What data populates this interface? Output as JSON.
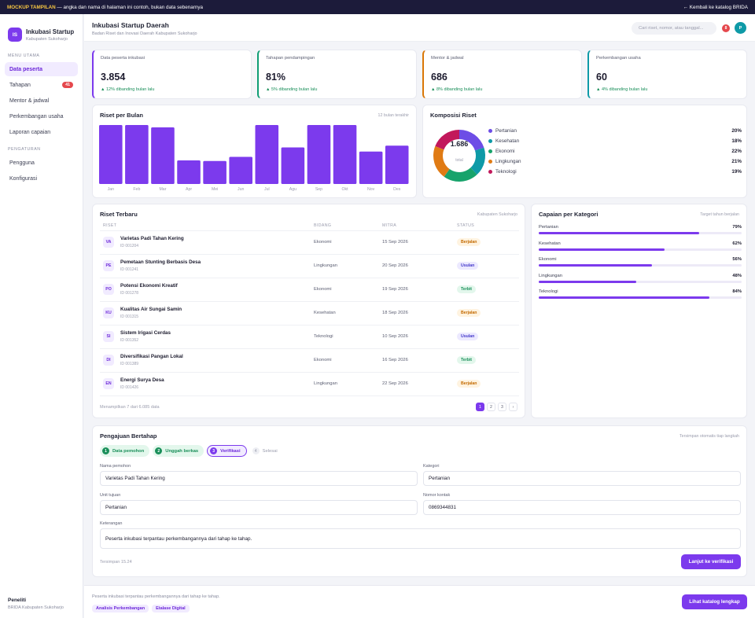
{
  "banner": {
    "tag": "MOCKUP TAMPILAN",
    "text": " — angka dan nama di halaman ini contoh, bukan data sebenarnya",
    "back": "← Kembali ke katalog BRIDA"
  },
  "brand": {
    "logo": "IS",
    "name": "Inkubasi Startup",
    "sub": "Kabupaten Sukoharjo"
  },
  "sidebar": {
    "section_main": "MENU UTAMA",
    "items": [
      {
        "label": "Data peserta",
        "active": true
      },
      {
        "label": "Tahapan",
        "badge": "41"
      },
      {
        "label": "Mentor & jadwal"
      },
      {
        "label": "Perkembangan usaha"
      },
      {
        "label": "Laporan capaian"
      }
    ],
    "section_settings": "PENGATURAN",
    "settings": [
      {
        "label": "Pengguna"
      },
      {
        "label": "Konfigurasi"
      }
    ],
    "footer": {
      "name": "Peneliti",
      "org": "BRIDA Kabupaten Sukoharjo"
    }
  },
  "header": {
    "title": "Inkubasi Startup Daerah",
    "subtitle": "Badan Riset dan Inovasi Daerah Kabupaten Sukoharjo",
    "search_placeholder": "Cari riset, nomor, atau tanggal...",
    "notif": "8",
    "avatar": "P"
  },
  "stats": [
    {
      "label": "Data peserta inkubasi",
      "value": "3.854",
      "change": "▲ 12% dibanding bulan lalu",
      "color": "#7c3aed"
    },
    {
      "label": "Tahapan pendampingan",
      "value": "81%",
      "change": "▲ 5% dibanding bulan lalu",
      "color": "#0f9d74"
    },
    {
      "label": "Mentor & jadwal",
      "value": "686",
      "change": "▲ 8% dibanding bulan lalu",
      "color": "#d97706"
    },
    {
      "label": "Perkembangan usaha",
      "value": "60",
      "change": "▲ 4% dibanding bulan lalu",
      "color": "#0e9aa7"
    }
  ],
  "chart_data": [
    {
      "type": "bar",
      "title": "Riset per Bulan",
      "note": "12 bulan terakhir",
      "categories": [
        "Jan",
        "Feb",
        "Mar",
        "Apr",
        "Mei",
        "Jun",
        "Jul",
        "Agu",
        "Sep",
        "Okt",
        "Nov",
        "Des"
      ],
      "values": [
        100,
        100,
        96,
        40,
        39,
        46,
        100,
        62,
        100,
        100,
        55,
        65
      ],
      "ylim": [
        0,
        100
      ],
      "color": "#7c3aed"
    },
    {
      "type": "pie",
      "title": "Komposisi Riset",
      "center_value": "1.686",
      "center_label": "total",
      "slices": [
        {
          "label": "Pertanian",
          "value": 20,
          "display": "20%",
          "color": "#6d4de6"
        },
        {
          "label": "Kesehatan",
          "value": 18,
          "display": "18%",
          "color": "#0e9aa7"
        },
        {
          "label": "Ekonomi",
          "value": 22,
          "display": "22%",
          "color": "#17a36b"
        },
        {
          "label": "Lingkungan",
          "value": 21,
          "display": "21%",
          "color": "#e07b14"
        },
        {
          "label": "Teknologi",
          "value": 19,
          "display": "19%",
          "color": "#c2185b"
        }
      ]
    }
  ],
  "riset": {
    "title": "Riset Terbaru",
    "note": "Kabupaten Sukoharjo",
    "columns": [
      "RISET",
      "BIDANG",
      "MITRA",
      "STATUS"
    ],
    "rows": [
      {
        "initials": "VA",
        "name": "Varietas Padi Tahan Kering",
        "id": "ID 001204",
        "bidang": "Ekonomi",
        "mitra": "15 Sep 2026",
        "status": "Berjalan",
        "kind": "berjalan"
      },
      {
        "initials": "PE",
        "name": "Pemetaan Stunting Berbasis Desa",
        "id": "ID 001241",
        "bidang": "Lingkungan",
        "mitra": "20 Sep 2026",
        "status": "Usulan",
        "kind": "usulan"
      },
      {
        "initials": "PO",
        "name": "Potensi Ekonomi Kreatif",
        "id": "ID 001278",
        "bidang": "Ekonomi",
        "mitra": "19 Sep 2026",
        "status": "Terbit",
        "kind": "terbit"
      },
      {
        "initials": "KU",
        "name": "Kualitas Air Sungai Samin",
        "id": "ID 001315",
        "bidang": "Kesehatan",
        "mitra": "18 Sep 2026",
        "status": "Berjalan",
        "kind": "berjalan"
      },
      {
        "initials": "SI",
        "name": "Sistem Irigasi Cerdas",
        "id": "ID 001352",
        "bidang": "Teknologi",
        "mitra": "10 Sep 2026",
        "status": "Usulan",
        "kind": "usulan"
      },
      {
        "initials": "DI",
        "name": "Diversifikasi Pangan Lokal",
        "id": "ID 001389",
        "bidang": "Ekonomi",
        "mitra": "16 Sep 2026",
        "status": "Terbit",
        "kind": "terbit"
      },
      {
        "initials": "EN",
        "name": "Energi Surya Desa",
        "id": "ID 001426",
        "bidang": "Lingkungan",
        "mitra": "22 Sep 2026",
        "status": "Berjalan",
        "kind": "berjalan"
      }
    ],
    "footer": "Menampilkan 7 dari 6.085 data",
    "pages": [
      "1",
      "2",
      "3",
      "›"
    ]
  },
  "capaian": {
    "title": "Capaian per Kategori",
    "note": "Target tahun berjalan",
    "items": [
      {
        "label": "Pertanian",
        "pct": 79,
        "display": "79%"
      },
      {
        "label": "Kesehatan",
        "pct": 62,
        "display": "62%"
      },
      {
        "label": "Ekonomi",
        "pct": 56,
        "display": "56%"
      },
      {
        "label": "Lingkungan",
        "pct": 48,
        "display": "48%"
      },
      {
        "label": "Teknologi",
        "pct": 84,
        "display": "84%"
      }
    ]
  },
  "form": {
    "title": "Pengajuan Bertahap",
    "note": "Tersimpan otomatis tiap langkah",
    "steps": [
      {
        "num": "1",
        "label": "Data pemohon",
        "state": "done"
      },
      {
        "num": "2",
        "label": "Unggah berkas",
        "state": "done"
      },
      {
        "num": "3",
        "label": "Verifikasi",
        "state": "cur"
      },
      {
        "num": "4",
        "label": "Selesai",
        "state": "todo"
      }
    ],
    "fields": {
      "nama_label": "Nama pemohon",
      "nama_value": "Varietas Padi Tahan Kering",
      "kategori_label": "Kategori",
      "kategori_value": "Pertanian",
      "unit_label": "Unit tujuan",
      "unit_value": "Pertanian",
      "kontak_label": "Nomor kontak",
      "kontak_value": "0869344831",
      "ket_label": "Keterangan",
      "ket_value": "Peserta inkubasi terpantau perkembangannya dari tahap ke tahap."
    },
    "saved": "Tersimpan 15.24",
    "submit": "Lanjut ke verifikasi"
  },
  "footer": {
    "text": "Peserta inkubasi terpantau perkembangannya dari tahap ke tahap.",
    "chips": [
      "Analisis Perkembangan",
      "Etalase Digital"
    ],
    "button": "Lihat katalog lengkap"
  }
}
